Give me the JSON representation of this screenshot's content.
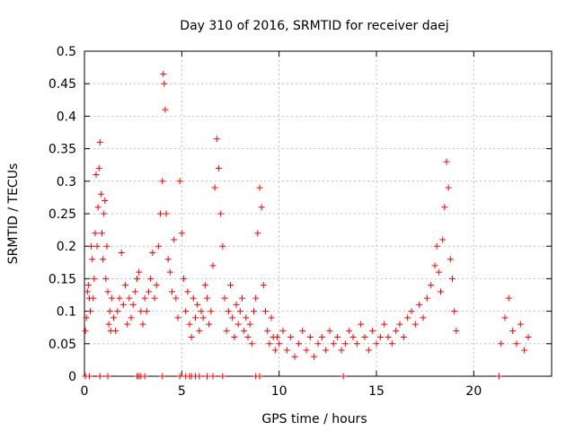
{
  "chart_data": {
    "type": "scatter",
    "title": "Day 310 of 2016, SRMTID for receiver daej",
    "xlabel": "GPS time / hours",
    "ylabel": "SRMTID / TECUs",
    "xlim": [
      0,
      24
    ],
    "ylim": [
      0,
      0.5
    ],
    "x_ticks": [
      0,
      5,
      10,
      15,
      20
    ],
    "y_ticks": [
      0,
      0.05,
      0.1,
      0.15,
      0.2,
      0.25,
      0.3,
      0.35,
      0.4,
      0.45,
      0.5
    ],
    "x_tick_labels": [
      "0",
      "5",
      "10",
      "15",
      "20"
    ],
    "y_tick_labels": [
      "0",
      "0.05",
      "0.1",
      "0.15",
      "0.2",
      "0.25",
      "0.3",
      "0.35",
      "0.4",
      "0.45",
      "0.5"
    ],
    "grid": true,
    "marker": "+",
    "color": "#ff0000",
    "series": [
      {
        "name": "SRMTID",
        "x": [
          0.05,
          0.1,
          0.15,
          0.2,
          0.25,
          0.3,
          0.35,
          0.4,
          0.45,
          0.5,
          0.55,
          0.6,
          0.65,
          0.7,
          0.75,
          0.8,
          0.85,
          0.9,
          0.95,
          1.0,
          1.05,
          1.1,
          1.15,
          1.2,
          1.25,
          1.3,
          1.35,
          1.4,
          1.5,
          1.6,
          1.7,
          1.8,
          1.9,
          2.0,
          2.1,
          2.2,
          2.3,
          2.4,
          2.5,
          2.6,
          2.7,
          2.8,
          2.9,
          3.0,
          3.1,
          3.2,
          3.3,
          3.4,
          3.5,
          3.6,
          3.7,
          3.8,
          3.9,
          4.0,
          4.05,
          4.1,
          4.15,
          4.2,
          4.3,
          4.4,
          4.5,
          4.6,
          4.7,
          4.8,
          4.9,
          5.0,
          5.1,
          5.2,
          5.3,
          5.4,
          5.5,
          5.6,
          5.7,
          5.8,
          5.9,
          6.0,
          6.1,
          6.2,
          6.3,
          6.4,
          6.5,
          6.6,
          6.7,
          6.8,
          6.9,
          7.0,
          7.1,
          7.2,
          7.3,
          7.4,
          7.5,
          7.6,
          7.7,
          7.8,
          7.9,
          8.0,
          8.1,
          8.2,
          8.3,
          8.4,
          8.5,
          8.6,
          8.7,
          8.8,
          8.9,
          9.0,
          9.1,
          9.2,
          9.3,
          9.4,
          9.5,
          9.6,
          9.7,
          9.8,
          9.9,
          10.0,
          10.2,
          10.4,
          10.6,
          10.8,
          11.0,
          11.2,
          11.4,
          11.6,
          11.8,
          12.0,
          12.2,
          12.4,
          12.6,
          12.8,
          13.0,
          13.2,
          13.4,
          13.6,
          13.8,
          14.0,
          14.2,
          14.4,
          14.6,
          14.8,
          15.0,
          15.2,
          15.4,
          15.6,
          15.8,
          16.0,
          16.2,
          16.4,
          16.6,
          16.8,
          17.0,
          17.2,
          17.4,
          17.6,
          17.8,
          18.0,
          18.1,
          18.2,
          18.3,
          18.4,
          18.5,
          18.6,
          18.7,
          18.8,
          18.9,
          19.0,
          19.1,
          21.4,
          21.6,
          21.8,
          22.0,
          22.2,
          22.4,
          22.6,
          22.8,
          0.05,
          0.25,
          0.8,
          1.2,
          2.7,
          2.8,
          2.9,
          3.1,
          4.0,
          4.9,
          5.2,
          5.4,
          5.5,
          5.7,
          5.9,
          6.3,
          6.6,
          7.1,
          8.8,
          9.0,
          13.3,
          21.3
        ],
        "y": [
          0.07,
          0.09,
          0.13,
          0.14,
          0.12,
          0.1,
          0.2,
          0.18,
          0.12,
          0.15,
          0.22,
          0.31,
          0.2,
          0.26,
          0.32,
          0.36,
          0.28,
          0.22,
          0.18,
          0.25,
          0.27,
          0.15,
          0.2,
          0.13,
          0.08,
          0.1,
          0.07,
          0.12,
          0.09,
          0.07,
          0.1,
          0.12,
          0.19,
          0.11,
          0.14,
          0.08,
          0.12,
          0.09,
          0.11,
          0.13,
          0.15,
          0.16,
          0.1,
          0.08,
          0.12,
          0.1,
          0.13,
          0.15,
          0.19,
          0.12,
          0.14,
          0.2,
          0.25,
          0.3,
          0.465,
          0.45,
          0.41,
          0.25,
          0.18,
          0.16,
          0.13,
          0.21,
          0.12,
          0.09,
          0.3,
          0.22,
          0.15,
          0.1,
          0.13,
          0.08,
          0.06,
          0.12,
          0.09,
          0.11,
          0.07,
          0.1,
          0.09,
          0.14,
          0.12,
          0.08,
          0.1,
          0.17,
          0.29,
          0.365,
          0.32,
          0.25,
          0.2,
          0.12,
          0.07,
          0.1,
          0.14,
          0.09,
          0.06,
          0.11,
          0.08,
          0.1,
          0.12,
          0.07,
          0.09,
          0.06,
          0.08,
          0.05,
          0.1,
          0.12,
          0.22,
          0.29,
          0.26,
          0.14,
          0.1,
          0.07,
          0.05,
          0.09,
          0.06,
          0.04,
          0.06,
          0.05,
          0.07,
          0.04,
          0.06,
          0.03,
          0.05,
          0.07,
          0.04,
          0.06,
          0.03,
          0.05,
          0.06,
          0.04,
          0.07,
          0.05,
          0.06,
          0.04,
          0.05,
          0.07,
          0.06,
          0.05,
          0.08,
          0.06,
          0.04,
          0.07,
          0.05,
          0.06,
          0.08,
          0.06,
          0.05,
          0.07,
          0.08,
          0.06,
          0.09,
          0.1,
          0.08,
          0.11,
          0.09,
          0.12,
          0.14,
          0.17,
          0.2,
          0.16,
          0.13,
          0.21,
          0.26,
          0.33,
          0.29,
          0.18,
          0.15,
          0.1,
          0.07,
          0.05,
          0.09,
          0.12,
          0.07,
          0.05,
          0.08,
          0.04,
          0.06,
          0.0,
          0.0,
          0.0,
          0.0,
          0.0,
          0.0,
          0.0,
          0.0,
          0.0,
          0.0,
          0.0,
          0.0,
          0.0,
          0.0,
          0.0,
          0.0,
          0.0,
          0.0,
          0.0,
          0.0,
          0.0,
          0.0
        ]
      }
    ]
  }
}
